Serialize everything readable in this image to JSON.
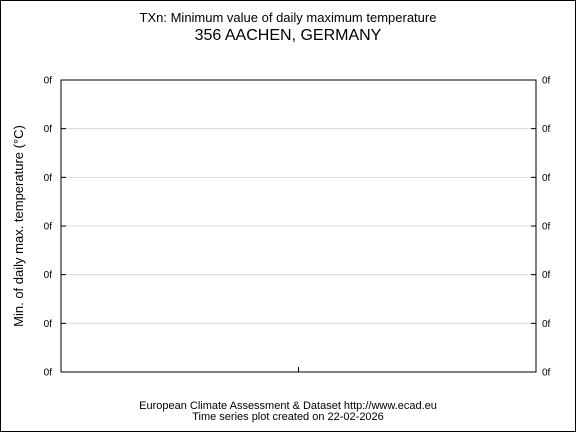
{
  "title": "TXn: Minimum value of daily maximum temperature",
  "subtitle": "356 AACHEN, GERMANY",
  "footer": {
    "line1": "European Climate Assessment & Dataset  http://www.ecad.eu",
    "line2": "Time series plot created on 22-02-2026"
  },
  "chart_data": {
    "type": "line",
    "title": "TXn: Minimum value of daily maximum temperature",
    "subtitle": "356 AACHEN, GERMANY",
    "xlabel": "",
    "ylabel": "Min. of daily max. temperature (°C)",
    "y_tick_labels": [
      "0f",
      "0f",
      "0f",
      "0f",
      "0f",
      "0f",
      "0f"
    ],
    "x_tick_labels": [],
    "series": [],
    "grid": "horizontal"
  }
}
